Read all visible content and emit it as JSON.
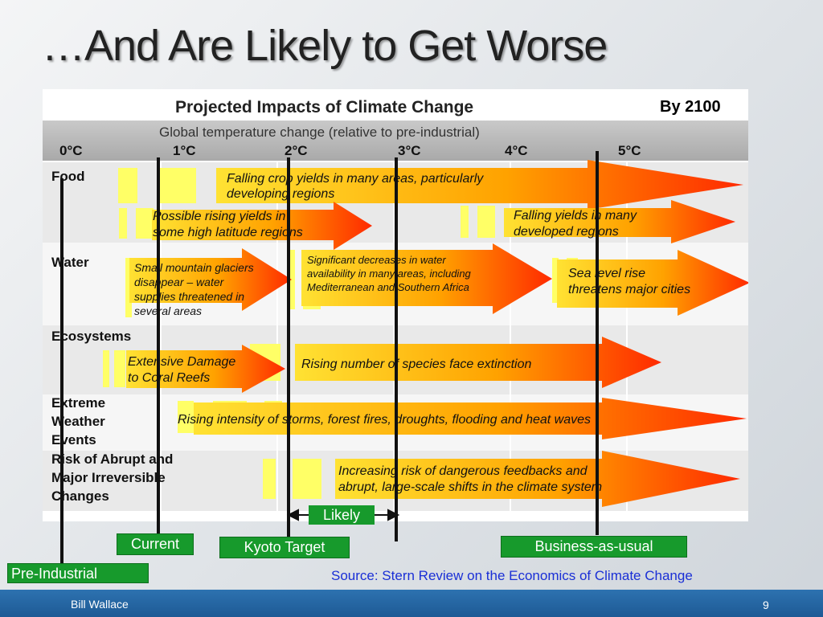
{
  "slide_title": "…And Are Likely to Get Worse",
  "diagram": {
    "title": "Projected Impacts of Climate Change",
    "year_label": "By 2100",
    "scale_caption": "Global temperature change (relative to pre-industrial)",
    "temperatures": [
      "0°C",
      "1°C",
      "2°C",
      "3°C",
      "4°C",
      "5°C"
    ],
    "categories": {
      "food": "Food",
      "water": "Water",
      "ecosystems": "Ecosystems",
      "extreme_weather": [
        "Extreme",
        "Weather",
        "Events"
      ],
      "abrupt": [
        "Risk of Abrupt and",
        "Major Irreversible",
        "Changes"
      ]
    },
    "impacts": {
      "food_falling_crops": [
        "Falling crop yields in many areas, particularly",
        "developing regions"
      ],
      "food_rising_yields": [
        "Possible rising yields in",
        "some high latitude regions"
      ],
      "food_falling_developed": [
        "Falling yields in many",
        "developed regions"
      ],
      "water_glaciers": [
        "Small mountain glaciers",
        "disappear  – water",
        "supplies threatened in",
        "several areas"
      ],
      "water_decreases": [
        "Significant decreases in water",
        "availability in many areas, including",
        "Mediterranean and Southern Africa"
      ],
      "water_sea_level": [
        "Sea level rise",
        "threatens major cities"
      ],
      "eco_coral": [
        "Extensive Damage",
        "to Coral Reefs"
      ],
      "eco_species": "Rising number of species face extinction",
      "weather_storms": "Rising intensity of storms, forest fires, droughts, flooding and heat waves",
      "abrupt_feedbacks": [
        "Increasing risk of dangerous feedbacks and",
        "abrupt, large-scale shifts in the climate system"
      ]
    }
  },
  "markers": {
    "likely": "Likely",
    "current": "Current",
    "kyoto": "Kyoto Target",
    "business": "Business-as-usual",
    "pre_industrial": "Pre-Industrial"
  },
  "source": "Source:  Stern Review on the Economics of Climate Change",
  "footer": {
    "author": "Bill Wallace",
    "page_number": "9"
  },
  "colors": {
    "label_green": "#179a2c",
    "arrow_red": "#ff2a00",
    "arrow_orange": "#ffb000",
    "marker_yellow": "#ffff66",
    "source_blue": "#1a2fd6",
    "footer_blue": "#1e5a95"
  }
}
